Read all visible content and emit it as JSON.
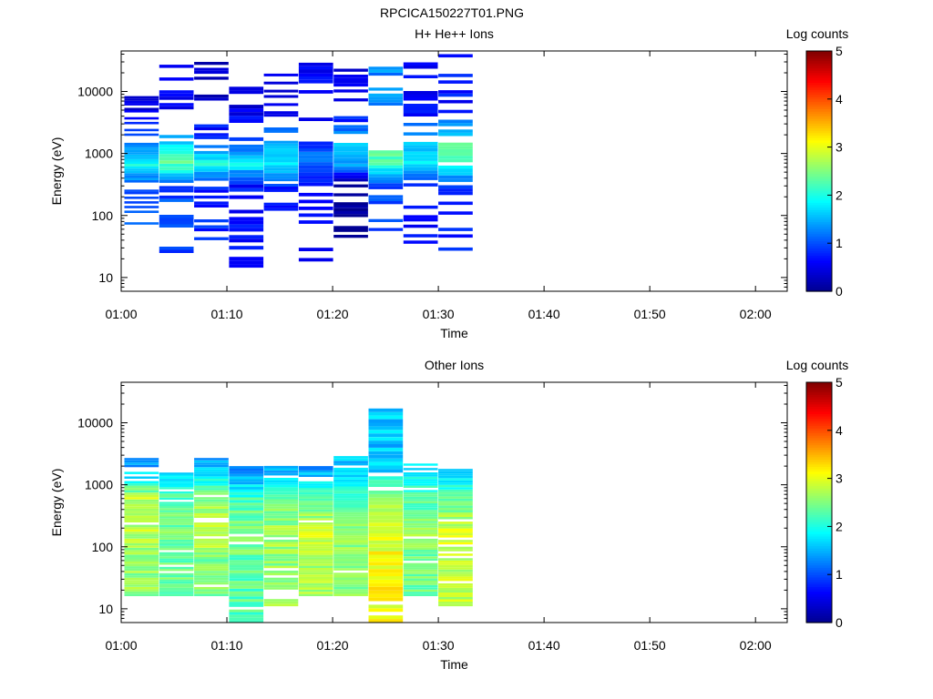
{
  "figure_title": "RPCICA150227T01.PNG",
  "colors": {
    "axis": "#000000",
    "jet": [
      "#00008f",
      "#0000ff",
      "#0080ff",
      "#00ffff",
      "#80ff80",
      "#ffff00",
      "#ff8000",
      "#ff0000",
      "#800000"
    ]
  },
  "chart_data": [
    {
      "type": "heatmap",
      "title": "H+ He++ Ions",
      "xlabel": "Time",
      "ylabel": "Energy (eV)",
      "x_ticks": [
        "01:00",
        "01:10",
        "01:20",
        "01:30",
        "01:40",
        "01:50",
        "02:00"
      ],
      "xlim": [
        "01:00",
        "02:03"
      ],
      "y_scale": "log",
      "y_ticks": [
        "10",
        "100",
        "1000",
        "10000"
      ],
      "ylim": [
        6,
        45000
      ],
      "colorbar": {
        "label": "Log counts",
        "range": [
          0,
          5
        ],
        "ticks": [
          "0",
          "1",
          "2",
          "3",
          "4",
          "5"
        ]
      },
      "time_bins": [
        "01:01",
        "01:04",
        "01:07",
        "01:11",
        "01:14",
        "01:17",
        "01:21",
        "01:24",
        "01:27",
        "01:30"
      ],
      "energy_range_by_bin": [
        [
          55,
          10000
        ],
        [
          22,
          27000
        ],
        [
          40,
          30000
        ],
        [
          11,
          35000
        ],
        [
          80,
          32000
        ],
        [
          16,
          33000
        ],
        [
          35,
          26000
        ],
        [
          45,
          35000
        ],
        [
          35,
          42000
        ],
        [
          27,
          40000
        ]
      ],
      "log_counts": [
        {
          "energy": 700,
          "values": [
            2.0,
            2.3,
            2.0,
            1.9,
            1.9,
            1.2,
            1.5,
            2.2,
            1.8,
            2.2
          ]
        },
        {
          "energy": 1200,
          "values": [
            1.3,
            1.9,
            1.2,
            1.1,
            1.5,
            1.0,
            1.8,
            2.5,
            1.7,
            2.4
          ]
        },
        {
          "energy": 300,
          "values": [
            1.0,
            1.0,
            0.8,
            0.7,
            0.8,
            0.6,
            0.0,
            1.0,
            0.6,
            0.8
          ]
        },
        {
          "energy": 5000,
          "values": [
            0.4,
            0.5,
            0.3,
            0.5,
            0.5,
            0.6,
            0.5,
            1.3,
            0.6,
            0.7
          ]
        }
      ]
    },
    {
      "type": "heatmap",
      "title": "Other Ions",
      "xlabel": "Time",
      "ylabel": "Energy (eV)",
      "x_ticks": [
        "01:00",
        "01:10",
        "01:20",
        "01:30",
        "01:40",
        "01:50",
        "02:00"
      ],
      "xlim": [
        "01:00",
        "02:03"
      ],
      "y_scale": "log",
      "y_ticks": [
        "10",
        "100",
        "1000",
        "10000"
      ],
      "ylim": [
        6,
        45000
      ],
      "colorbar": {
        "label": "Log counts",
        "range": [
          0,
          5
        ],
        "ticks": [
          "0",
          "1",
          "2",
          "3",
          "4",
          "5"
        ]
      },
      "time_bins": [
        "01:01",
        "01:04",
        "01:07",
        "01:11",
        "01:14",
        "01:17",
        "01:21",
        "01:24",
        "01:27",
        "01:30"
      ],
      "energy_range_by_bin": [
        [
          16,
          2700
        ],
        [
          16,
          1700
        ],
        [
          16,
          2700
        ],
        [
          6,
          2000
        ],
        [
          11,
          2200
        ],
        [
          16,
          2000
        ],
        [
          16,
          2900
        ],
        [
          6,
          17000
        ],
        [
          16,
          2200
        ],
        [
          11,
          1800
        ]
      ],
      "log_counts": [
        {
          "energy": 60,
          "values": [
            2.6,
            2.4,
            2.5,
            2.3,
            2.6,
            2.7,
            2.5,
            3.1,
            2.4,
            2.8
          ]
        },
        {
          "energy": 150,
          "values": [
            2.8,
            2.5,
            2.9,
            2.6,
            2.7,
            2.9,
            2.6,
            2.9,
            2.6,
            3.0
          ]
        },
        {
          "energy": 600,
          "values": [
            2.8,
            2.3,
            2.6,
            2.2,
            2.4,
            2.4,
            2.3,
            2.5,
            2.3,
            2.3
          ]
        },
        {
          "energy": 2000,
          "values": [
            1.3,
            1.4,
            1.5,
            1.1,
            1.3,
            1.2,
            1.6,
            1.6,
            1.8,
            1.3
          ]
        }
      ]
    }
  ]
}
